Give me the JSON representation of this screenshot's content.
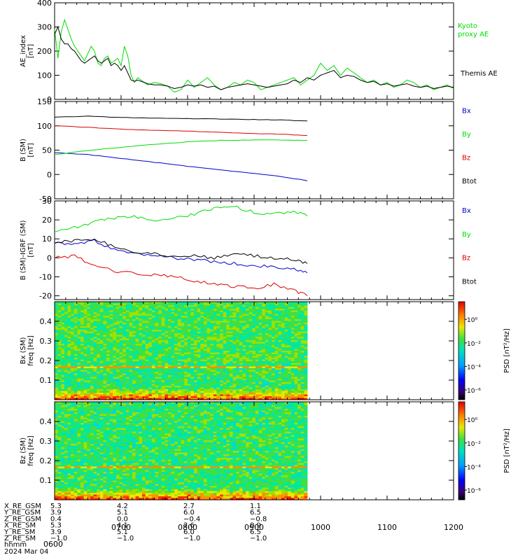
{
  "chart_data": [
    {
      "type": "line",
      "panel": "ae",
      "ylabel": [
        "AE_index",
        "[nT]"
      ],
      "ylim": [
        0,
        400
      ],
      "yticks": [
        0,
        100,
        200,
        300,
        400
      ],
      "series": [
        {
          "name": "Kyoto proxy AE",
          "label_lines": [
            "Kyoto",
            "proxy AE"
          ],
          "color": "#00dd00",
          "x": [
            6.0,
            6.05,
            6.1,
            6.15,
            6.2,
            6.25,
            6.3,
            6.35,
            6.4,
            6.45,
            6.5,
            6.55,
            6.6,
            6.65,
            6.7,
            6.75,
            6.8,
            6.85,
            6.9,
            6.95,
            7.0,
            7.05,
            7.1,
            7.15,
            7.2,
            7.25,
            7.3,
            7.35,
            7.4,
            7.5,
            7.6,
            7.7,
            7.8,
            7.9,
            8.0,
            8.1,
            8.2,
            8.3,
            8.4,
            8.5,
            8.6,
            8.7,
            8.8,
            8.9,
            9.0,
            9.1,
            9.2,
            9.3,
            9.4,
            9.5,
            9.6,
            9.7,
            9.8,
            9.9,
            10.0,
            10.1,
            10.2,
            10.3,
            10.4,
            10.5,
            10.6,
            10.7,
            10.8,
            10.9,
            11.0,
            11.1,
            11.2,
            11.3,
            11.4,
            11.5,
            11.6,
            11.7,
            11.8,
            11.9,
            12.0
          ],
          "y": [
            290,
            170,
            280,
            330,
            290,
            250,
            220,
            200,
            180,
            160,
            190,
            220,
            200,
            150,
            140,
            170,
            180,
            150,
            160,
            170,
            140,
            220,
            180,
            100,
            70,
            90,
            80,
            70,
            60,
            70,
            65,
            55,
            30,
            40,
            80,
            50,
            70,
            90,
            60,
            40,
            50,
            70,
            60,
            80,
            70,
            40,
            50,
            60,
            70,
            80,
            90,
            60,
            80,
            100,
            150,
            120,
            140,
            100,
            130,
            110,
            90,
            70,
            80,
            60,
            70,
            50,
            60,
            80,
            70,
            50,
            60,
            40,
            50,
            60,
            45
          ]
        },
        {
          "name": "Themis AE",
          "label_lines": [
            "Themis AE"
          ],
          "color": "#000000",
          "x": [
            6.0,
            6.05,
            6.1,
            6.15,
            6.2,
            6.25,
            6.3,
            6.35,
            6.4,
            6.45,
            6.5,
            6.55,
            6.6,
            6.65,
            6.7,
            6.75,
            6.8,
            6.85,
            6.9,
            6.95,
            7.0,
            7.05,
            7.1,
            7.15,
            7.2,
            7.25,
            7.3,
            7.35,
            7.4,
            7.5,
            7.6,
            7.7,
            7.8,
            7.9,
            8.0,
            8.1,
            8.2,
            8.3,
            8.4,
            8.5,
            8.6,
            8.7,
            8.8,
            8.9,
            9.0,
            9.1,
            9.2,
            9.3,
            9.4,
            9.5,
            9.6,
            9.7,
            9.8,
            9.9,
            10.0,
            10.1,
            10.2,
            10.3,
            10.4,
            10.5,
            10.6,
            10.7,
            10.8,
            10.9,
            11.0,
            11.1,
            11.2,
            11.3,
            11.4,
            11.5,
            11.6,
            11.7,
            11.8,
            11.9,
            12.0
          ],
          "y": [
            270,
            300,
            250,
            230,
            230,
            210,
            200,
            180,
            160,
            150,
            160,
            170,
            180,
            160,
            150,
            160,
            170,
            140,
            150,
            140,
            120,
            140,
            110,
            80,
            75,
            80,
            75,
            70,
            65,
            60,
            60,
            55,
            45,
            50,
            60,
            55,
            60,
            50,
            55,
            40,
            50,
            55,
            60,
            65,
            60,
            55,
            50,
            55,
            60,
            65,
            80,
            70,
            90,
            80,
            100,
            110,
            120,
            90,
            100,
            95,
            80,
            70,
            75,
            60,
            65,
            55,
            60,
            65,
            55,
            50,
            55,
            45,
            50,
            55,
            50
          ]
        }
      ]
    },
    {
      "type": "line",
      "panel": "b_sm",
      "ylabel": [
        "B (SM)",
        "[nT]"
      ],
      "ylim": [
        -50,
        150
      ],
      "yticks": [
        -50,
        0,
        50,
        100,
        150
      ],
      "series": [
        {
          "name": "Bx",
          "color": "#0000cc",
          "x": [
            6.0,
            6.5,
            7.0,
            7.5,
            8.0,
            8.5,
            9.0,
            9.4,
            9.8
          ],
          "y": [
            45,
            41,
            33,
            25,
            17,
            9,
            2,
            -4,
            -13
          ]
        },
        {
          "name": "By",
          "color": "#00dd00",
          "x": [
            6.0,
            6.5,
            7.0,
            7.5,
            8.0,
            8.5,
            9.0,
            9.4,
            9.8
          ],
          "y": [
            41,
            49,
            56,
            62,
            67,
            70,
            71,
            71,
            70
          ]
        },
        {
          "name": "Bz",
          "color": "#dd0000",
          "x": [
            6.0,
            6.5,
            7.0,
            7.5,
            8.0,
            8.5,
            9.0,
            9.4,
            9.8
          ],
          "y": [
            100,
            97,
            93,
            91,
            89,
            87,
            84,
            83,
            80
          ]
        },
        {
          "name": "Btot",
          "color": "#000000",
          "x": [
            6.0,
            6.5,
            7.0,
            7.5,
            8.0,
            8.5,
            9.0,
            9.4,
            9.8
          ],
          "y": [
            118,
            120,
            117,
            116,
            115,
            114,
            113,
            112,
            110
          ]
        }
      ]
    },
    {
      "type": "line",
      "panel": "b_igrf",
      "ylabel": [
        "B (SM)-IGRF (SM)",
        "[nT]"
      ],
      "ylim": [
        -22,
        30
      ],
      "yticks": [
        -20,
        -10,
        0,
        10,
        20,
        30
      ],
      "series": [
        {
          "name": "Bx",
          "color": "#0000cc",
          "x": [
            6.0,
            6.3,
            6.6,
            6.9,
            7.2,
            7.5,
            7.8,
            8.1,
            8.4,
            8.7,
            9.0,
            9.3,
            9.6,
            9.8
          ],
          "y": [
            8,
            7,
            9,
            4,
            2,
            1,
            0,
            -1,
            -2,
            -3,
            -4,
            -5,
            -6,
            -8
          ]
        },
        {
          "name": "By",
          "color": "#00dd00",
          "x": [
            6.0,
            6.3,
            6.6,
            6.9,
            7.2,
            7.5,
            7.8,
            8.1,
            8.4,
            8.7,
            9.0,
            9.3,
            9.6,
            9.8
          ],
          "y": [
            14,
            16,
            19,
            21,
            22,
            19,
            21,
            23,
            26,
            27,
            24,
            23,
            25,
            22
          ]
        },
        {
          "name": "Bz",
          "color": "#dd0000",
          "x": [
            6.0,
            6.3,
            6.6,
            6.9,
            7.2,
            7.5,
            7.8,
            8.1,
            8.4,
            8.7,
            9.0,
            9.3,
            9.6,
            9.8
          ],
          "y": [
            0,
            1,
            -4,
            -7,
            -8,
            -9,
            -10,
            -12,
            -14,
            -15,
            -16,
            -14,
            -17,
            -20
          ]
        },
        {
          "name": "Btot",
          "color": "#000000",
          "x": [
            6.0,
            6.3,
            6.6,
            6.9,
            7.2,
            7.5,
            7.8,
            8.1,
            8.4,
            8.7,
            9.0,
            9.3,
            9.6,
            9.8
          ],
          "y": [
            8,
            9,
            10,
            6,
            3,
            2,
            1,
            1,
            0,
            2,
            1,
            0,
            -1,
            -3
          ]
        }
      ]
    },
    {
      "type": "heatmap",
      "panel": "bx_spec",
      "ylabel": [
        "Bx (SM)",
        "freq  [Hz]"
      ],
      "ylim": [
        0,
        0.5
      ],
      "yticks": [
        0.1,
        0.2,
        0.3,
        0.4
      ],
      "x_range_filled": [
        6.0,
        9.8
      ],
      "band_freq": 0.165,
      "colorbar_label": "PSD [nT²/Hz]",
      "colorbar_ticks": [
        "10⁰",
        "10⁻²",
        "10⁻⁴",
        "10⁻⁶"
      ]
    },
    {
      "type": "heatmap",
      "panel": "bz_spec",
      "ylabel": [
        "Bz (SM)",
        "freq  [Hz]"
      ],
      "ylim": [
        0,
        0.5
      ],
      "yticks": [
        0.1,
        0.2,
        0.3,
        0.4
      ],
      "x_range_filled": [
        6.0,
        9.8
      ],
      "band_freq": 0.165,
      "colorbar_label": "PSD [nT²/Hz]",
      "colorbar_ticks": [
        "10⁰",
        "10⁻²",
        "10⁻⁴",
        "10⁻⁶"
      ]
    }
  ],
  "x_axis": {
    "range": [
      6,
      12
    ],
    "tick_values": [
      6,
      7,
      8,
      9,
      10,
      11,
      12
    ],
    "tick_labels": [
      "0600",
      "0700",
      "0800",
      "0900",
      "1000",
      "1100",
      "1200"
    ]
  },
  "ephemeris": {
    "rows": [
      {
        "label": "X_RE_GSM",
        "values": [
          "5.3",
          "4.2",
          "2.7",
          "1.1"
        ]
      },
      {
        "label": "Y_RE_GSM",
        "values": [
          "3.9",
          "5.1",
          "6.0",
          "6.5"
        ]
      },
      {
        "label": "Z_RE_GSM",
        "values": [
          "0.4",
          "0.0",
          "−0.4",
          "−0.8"
        ]
      },
      {
        "label": "X_RE_SM",
        "values": [
          "5.3",
          "4.1",
          "2.6",
          "0.9"
        ]
      },
      {
        "label": "Y_RE_SM",
        "values": [
          "3.9",
          "5.1",
          "6.0",
          "6.5"
        ]
      },
      {
        "label": "Z_RE_SM",
        "values": [
          "−1.0",
          "−1.0",
          "−1.0",
          "−1.0"
        ]
      }
    ],
    "time_label": "hhmm",
    "date_label": "2024 Mar 04"
  }
}
